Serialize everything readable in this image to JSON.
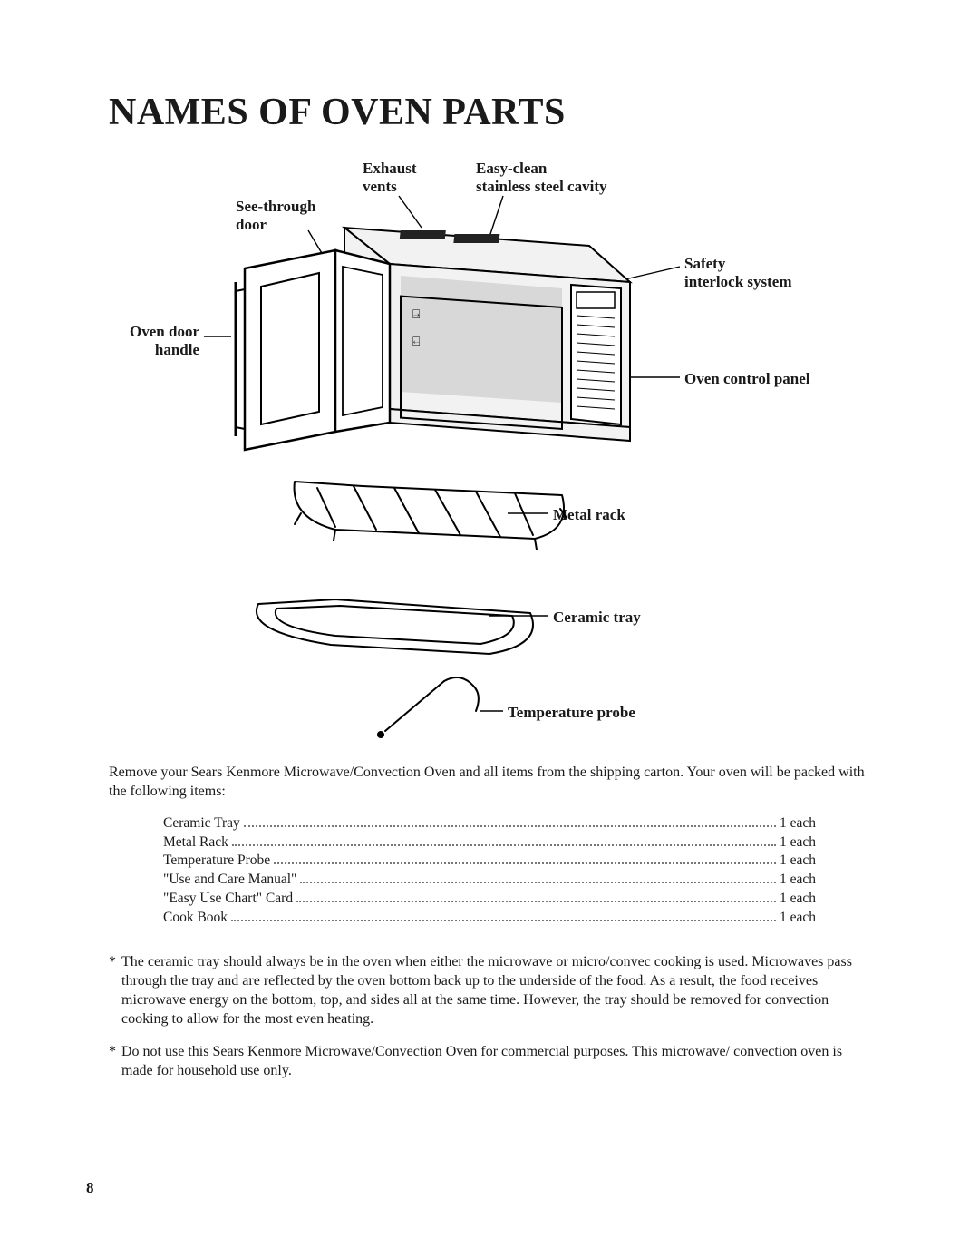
{
  "title": "NAMES OF OVEN PARTS",
  "labels": {
    "exhaust_vents_l1": "Exhaust",
    "exhaust_vents_l2": "vents",
    "stainless_l1": "Easy-clean",
    "stainless_l2": "stainless steel cavity",
    "see_through_l1": "See-through",
    "see_through_l2": "door",
    "safety_l1": "Safety",
    "safety_l2": "interlock system",
    "door_handle_l1": "Oven door",
    "door_handle_l2": "handle",
    "control_panel": "Oven control panel",
    "metal_rack": "Metal rack",
    "ceramic_tray": "Ceramic tray",
    "temp_probe": "Temperature probe"
  },
  "intro": "Remove your Sears Kenmore Microwave/Convection Oven and all items from the shipping carton. Your oven will be packed with the following items:",
  "packing": [
    {
      "item": "Ceramic Tray",
      "qty": "1 each"
    },
    {
      "item": "Metal Rack",
      "qty": "1 each"
    },
    {
      "item": "Temperature Probe",
      "qty": "1 each"
    },
    {
      "item": "\"Use and Care Manual\"",
      "qty": "1 each"
    },
    {
      "item": "\"Easy Use Chart\" Card",
      "qty": "1 each"
    },
    {
      "item": "Cook Book",
      "qty": "1 each"
    }
  ],
  "notes": [
    "The ceramic tray should always be in the oven when either the microwave or micro/convec cooking is used. Microwaves pass through the tray and are reflected by the oven bottom back up to the underside of the food. As a result, the food receives microwave energy on the bottom, top, and sides all at the same time. However, the tray should be removed for convection cooking to allow for the most even heating.",
    "Do not use this Sears Kenmore Microwave/Convection Oven for commercial purposes. This microwave/ convection oven is made for household use only."
  ],
  "page_number": "8",
  "style": {
    "background": "#ffffff",
    "text_color": "#1a1a1a",
    "title_fontsize": 42,
    "body_fontsize": 16,
    "label_fontsize": 17
  }
}
